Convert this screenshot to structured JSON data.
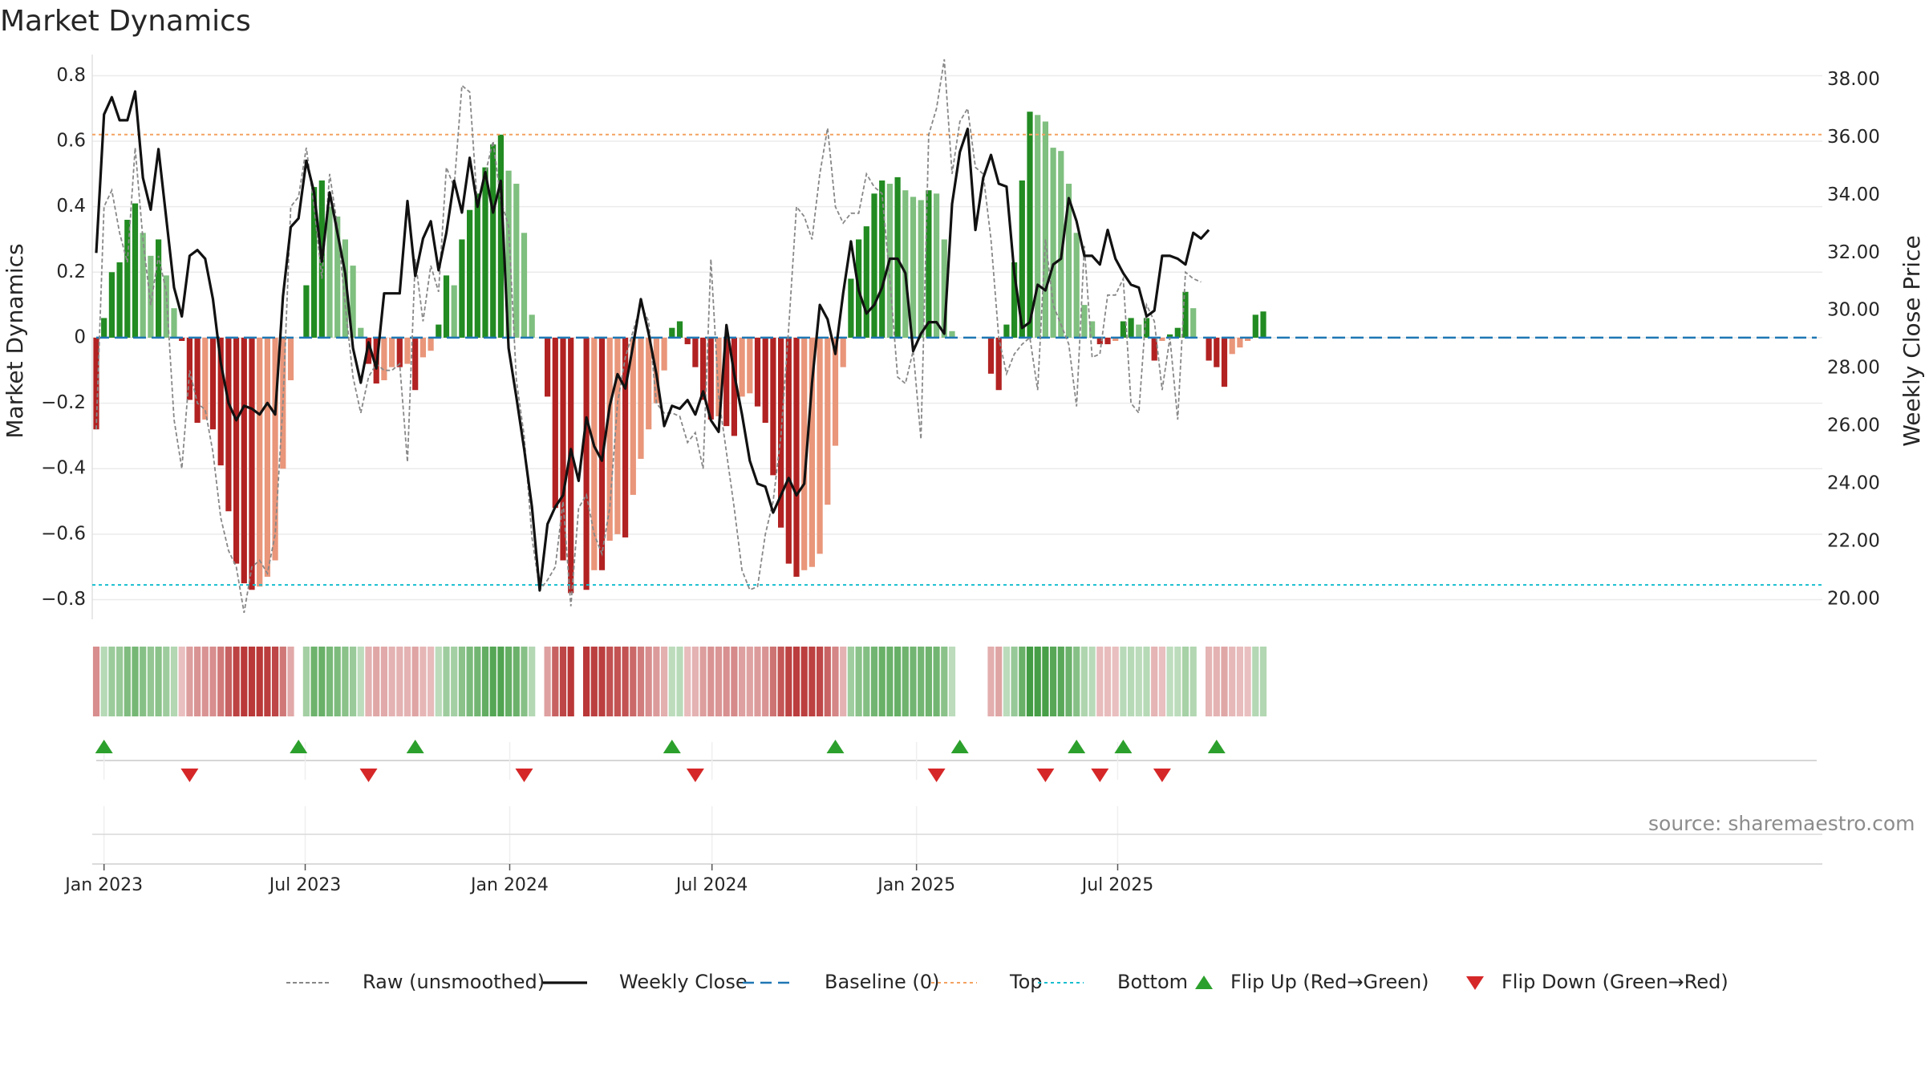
{
  "title": "Market Dynamics",
  "source": "source: sharemaestro.com",
  "chart_data": {
    "type": "bar",
    "title": "Market Dynamics",
    "ylabel": "Market Dynamics",
    "y2label": "Weekly Close Price",
    "ylim": [
      -0.86,
      0.84
    ],
    "y2lim": [
      19.3,
      38.6
    ],
    "yticks": [
      -0.8,
      -0.6,
      -0.4,
      -0.2,
      0,
      0.2,
      0.4,
      0.6,
      0.8
    ],
    "ytick_labels": [
      "−0.8",
      "−0.6",
      "−0.4",
      "−0.2",
      "0",
      "0.2",
      "0.4",
      "0.6",
      "0.8"
    ],
    "y2ticks": [
      20,
      22,
      24,
      26,
      28,
      30,
      32,
      34,
      36,
      38
    ],
    "y2tick_labels": [
      "20.00",
      "22.00",
      "24.00",
      "26.00",
      "28.00",
      "30.00",
      "32.00",
      "34.00",
      "36.00",
      "38.00"
    ],
    "xticks": [
      "2023-01-01",
      "2023-07-01",
      "2024-01-01",
      "2024-07-01",
      "2025-01-01",
      "2025-07-01"
    ],
    "xtick_labels": [
      "Jan 2023",
      "Jul 2023",
      "Jan 2024",
      "Jul 2024",
      "Jan 2025",
      "Jul 2025"
    ],
    "grid": true,
    "legend_position": "bottom",
    "legend": [
      "Raw (unsmoothed)",
      "Weekly Close",
      "Baseline (0)",
      "Top",
      "Bottom",
      "Flip Up (Red→Green)",
      "Flip Down (Green→Red)"
    ],
    "start_date": "2022-12-25",
    "weekly_dynamics": [
      -0.28,
      0.06,
      0.2,
      0.23,
      0.36,
      0.41,
      0.32,
      0.25,
      0.3,
      0.19,
      0.09,
      -0.01,
      -0.19,
      -0.26,
      -0.25,
      -0.28,
      -0.39,
      -0.53,
      -0.69,
      -0.75,
      -0.77,
      -0.76,
      -0.73,
      -0.68,
      -0.4,
      -0.13,
      0,
      0.16,
      0.46,
      0.48,
      0.4,
      0.37,
      0.3,
      0.22,
      0.03,
      -0.08,
      -0.14,
      -0.13,
      -0.09,
      -0.09,
      -0.08,
      -0.16,
      -0.06,
      -0.04,
      0.04,
      0.19,
      0.16,
      0.3,
      0.39,
      0.44,
      0.52,
      0.59,
      0.62,
      0.51,
      0.47,
      0.32,
      0.07,
      0,
      -0.18,
      -0.52,
      -0.68,
      -0.78,
      0,
      -0.77,
      -0.71,
      -0.71,
      -0.62,
      -0.6,
      -0.61,
      -0.48,
      -0.37,
      -0.28,
      -0.2,
      -0.1,
      0.03,
      0.05,
      -0.02,
      -0.09,
      -0.19,
      -0.25,
      -0.24,
      -0.27,
      -0.3,
      -0.18,
      -0.17,
      -0.21,
      -0.26,
      -0.42,
      -0.58,
      -0.69,
      -0.73,
      -0.71,
      -0.7,
      -0.66,
      -0.51,
      -0.33,
      -0.09,
      0.18,
      0.3,
      0.34,
      0.44,
      0.48,
      0.47,
      0.49,
      0.45,
      0.43,
      0.42,
      0.45,
      0.44,
      0.3,
      0.02,
      0,
      0,
      0,
      0,
      -0.11,
      -0.16,
      0.04,
      0.23,
      0.48,
      0.69,
      0.68,
      0.66,
      0.58,
      0.57,
      0.47,
      0.32,
      0.1,
      0.05,
      -0.02,
      -0.02,
      -0.01,
      0.05,
      0.06,
      0.04,
      0.06,
      -0.07,
      -0.01,
      0.01,
      0.03,
      0.14,
      0.09,
      0,
      -0.07,
      -0.09,
      -0.15,
      -0.05,
      -0.03,
      -0.01,
      0.07,
      0.08
    ],
    "weekly_close": [
      32,
      36.8,
      37.4,
      36.6,
      36.6,
      37.6,
      34.6,
      33.5,
      35.6,
      33.2,
      30.8,
      29.8,
      31.9,
      32.1,
      31.8,
      30.4,
      28.2,
      26.8,
      26.2,
      26.7,
      26.6,
      26.4,
      26.8,
      26.4,
      30.5,
      32.9,
      33.2,
      35.2,
      34.1,
      31.7,
      34.1,
      32.7,
      31.3,
      28.7,
      27.5,
      28.9,
      28,
      30.6,
      30.6,
      30.6,
      33.8,
      31.2,
      32.5,
      33.1,
      31.4,
      32.7,
      34.5,
      33.4,
      35.3,
      33.6,
      34.8,
      33.4,
      34.5,
      28.7,
      27,
      25.2,
      23.2,
      20.3,
      22.6,
      23.2,
      23.6,
      25.2,
      24.1,
      26.3,
      25.3,
      24.8,
      26.7,
      27.8,
      27.3,
      28.8,
      30.4,
      29.2,
      27.8,
      26,
      26.7,
      26.6,
      26.9,
      26.4,
      27.2,
      26.2,
      25.8,
      29.5,
      27.8,
      26.4,
      24.8,
      24,
      23.9,
      23,
      23.6,
      24.2,
      23.6,
      24,
      27.5,
      30.2,
      29.7,
      28.5,
      30.6,
      32.4,
      30.7,
      29.9,
      30.2,
      30.8,
      31.8,
      31.8,
      31.3,
      28.6,
      29.2,
      29.6,
      29.6,
      29.2,
      33.7,
      35.5,
      36.3,
      32.8,
      34.6,
      35.4,
      34.4,
      34.3,
      31.3,
      29.4,
      29.6,
      30.9,
      30.7,
      31.6,
      31.8,
      33.9,
      33.1,
      31.9,
      31.9,
      31.6,
      32.8,
      31.8,
      31.3,
      30.9,
      30.8,
      29.8,
      30,
      31.9,
      31.9,
      31.8,
      31.6,
      32.7,
      32.5,
      32.8
    ],
    "weekly_raw": [
      -0.28,
      0.4,
      0.45,
      0.32,
      0.23,
      0.58,
      0.3,
      0.1,
      0.25,
      0.14,
      -0.25,
      -0.4,
      -0.1,
      -0.2,
      -0.22,
      -0.35,
      -0.55,
      -0.65,
      -0.7,
      -0.84,
      -0.7,
      -0.68,
      -0.72,
      -0.6,
      -0.2,
      0.4,
      0.43,
      0.58,
      0.4,
      0.18,
      0.5,
      0.34,
      0.1,
      -0.12,
      -0.23,
      -0.12,
      -0.08,
      -0.1,
      -0.1,
      -0.08,
      -0.38,
      0.24,
      0.05,
      0.22,
      0.14,
      0.52,
      0.46,
      0.77,
      0.75,
      0.4,
      0.5,
      0.6,
      0.42,
      0.34,
      -0.13,
      -0.3,
      -0.61,
      -0.77,
      -0.74,
      -0.7,
      -0.5,
      -0.82,
      -0.52,
      -0.48,
      -0.6,
      -0.66,
      -0.52,
      -0.2,
      -0.06,
      0.02,
      0.1,
      0.05,
      -0.2,
      -0.23,
      -0.23,
      -0.24,
      -0.32,
      -0.29,
      -0.4,
      0.24,
      -0.18,
      -0.35,
      -0.52,
      -0.71,
      -0.77,
      -0.76,
      -0.6,
      -0.5,
      -0.3,
      0.03,
      0.4,
      0.37,
      0.3,
      0.5,
      0.64,
      0.4,
      0.35,
      0.38,
      0.38,
      0.5,
      0.46,
      0.44,
      0.18,
      -0.12,
      -0.14,
      -0.04,
      -0.31,
      0.62,
      0.7,
      0.85,
      0.5,
      0.66,
      0.7,
      0.52,
      0.5,
      0.3,
      0.0,
      -0.11,
      -0.05,
      -0.02,
      0.0,
      -0.16,
      0.3,
      0.1,
      0.04,
      -0.02,
      -0.21,
      0.28,
      -0.06,
      -0.05,
      0.13,
      0.13,
      0.18,
      -0.2,
      -0.23,
      0.1,
      0.05,
      -0.16,
      0.0,
      -0.25,
      0.2,
      0.18,
      0.17
    ],
    "flip_up_dates": [
      "2023-01-01",
      "2023-06-25",
      "2023-10-08",
      "2024-05-26",
      "2024-10-20",
      "2025-02-09",
      "2025-05-25",
      "2025-07-06",
      "2025-09-28"
    ],
    "flip_down_dates": [
      "2023-03-19",
      "2023-08-27",
      "2024-01-14",
      "2024-06-16",
      "2025-01-19",
      "2025-04-27",
      "2025-06-15",
      "2025-08-10"
    ],
    "top_level": 0.62,
    "bottom_level": -0.755,
    "baseline": 0
  },
  "colors": {
    "strong_green": "#228b22",
    "light_green": "#7fbf7f",
    "strong_red": "#b22222",
    "light_red": "#e9967a",
    "close_line": "#111111",
    "raw_line": "#888888",
    "baseline": "#1f77b4",
    "top": "#f4a261",
    "bottom": "#17becf",
    "flip_up": "#2ca02c",
    "flip_down": "#d62728"
  }
}
